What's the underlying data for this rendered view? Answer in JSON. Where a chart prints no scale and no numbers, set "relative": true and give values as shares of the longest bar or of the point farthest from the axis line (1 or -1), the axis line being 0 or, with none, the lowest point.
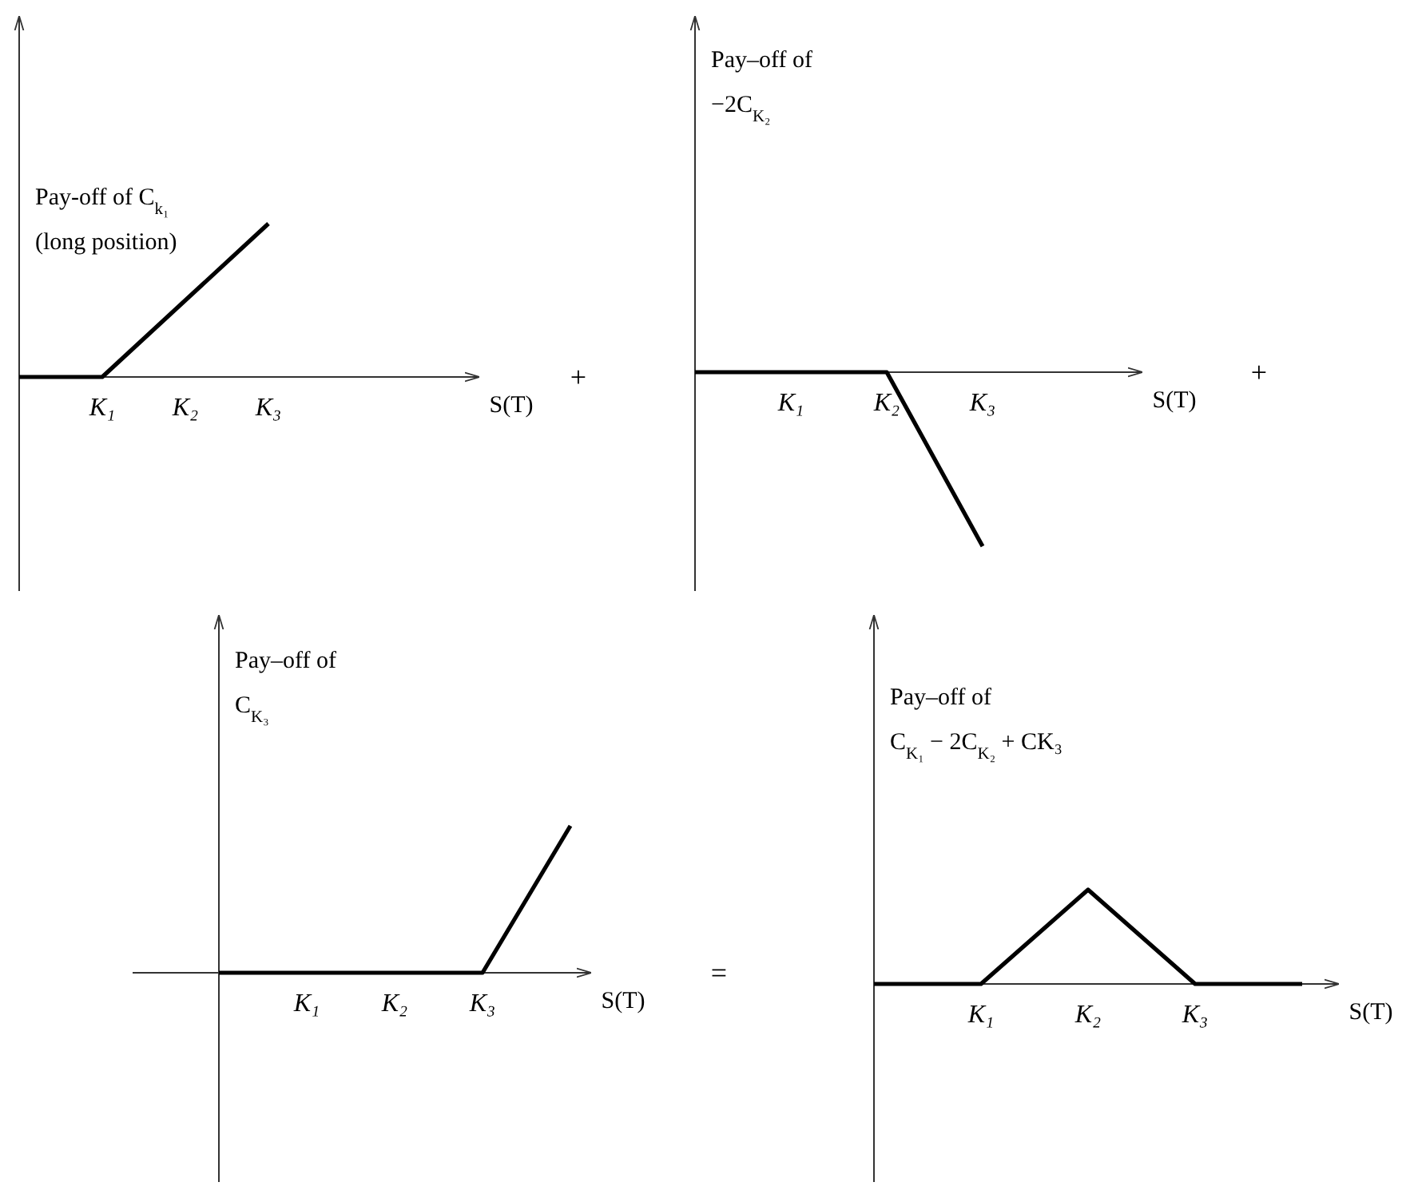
{
  "chart_data": [
    {
      "type": "line",
      "title": "Pay-off of C$_{k₁}$",
      "subtitle": "(long position)",
      "xlabel": "S(T)",
      "relative": true,
      "tick_labels": "x",
      "categories": [
        null,
        "K₁",
        "K₂",
        "K₃",
        null
      ],
      "annotations": [
        "+"
      ],
      "series": [
        {
          "color": "#000000",
          "values": [
            0,
            0,
            0.5,
            1,
            null
          ]
        }
      ]
    },
    {
      "type": "line",
      "title": "Pay–off of",
      "subtitle": "−2C$_{K₂}$",
      "xlabel": "S(T)",
      "relative": true,
      "tick_labels": "x",
      "categories": [
        null,
        "K₁",
        "K₂",
        "K₃",
        null
      ],
      "annotations": [
        "+"
      ],
      "series": [
        {
          "color": "#000000",
          "values": [
            0,
            0,
            0,
            -1,
            null
          ]
        }
      ]
    },
    {
      "type": "line",
      "title": "Pay–off of",
      "subtitle": "C$_{K₃}$",
      "xlabel": "S(T)",
      "relative": true,
      "tick_labels": "x",
      "categories": [
        null,
        "K₁",
        "K₂",
        "K₃",
        null
      ],
      "annotations": [
        "="
      ],
      "series": [
        {
          "color": "#000000",
          "values": [
            0,
            0,
            0,
            0,
            1
          ]
        }
      ]
    },
    {
      "type": "line",
      "title": "Pay–off of",
      "subtitle": "C$_{K₁}$ − 2C$_{K₂}$ + CK₃",
      "xlabel": "S(T)",
      "relative": true,
      "tick_labels": "x",
      "categories": [
        null,
        "K₁",
        "K₂",
        "K₃",
        null
      ],
      "series": [
        {
          "color": "#000000",
          "values": [
            0,
            0,
            1,
            0,
            0
          ]
        }
      ]
    }
  ]
}
